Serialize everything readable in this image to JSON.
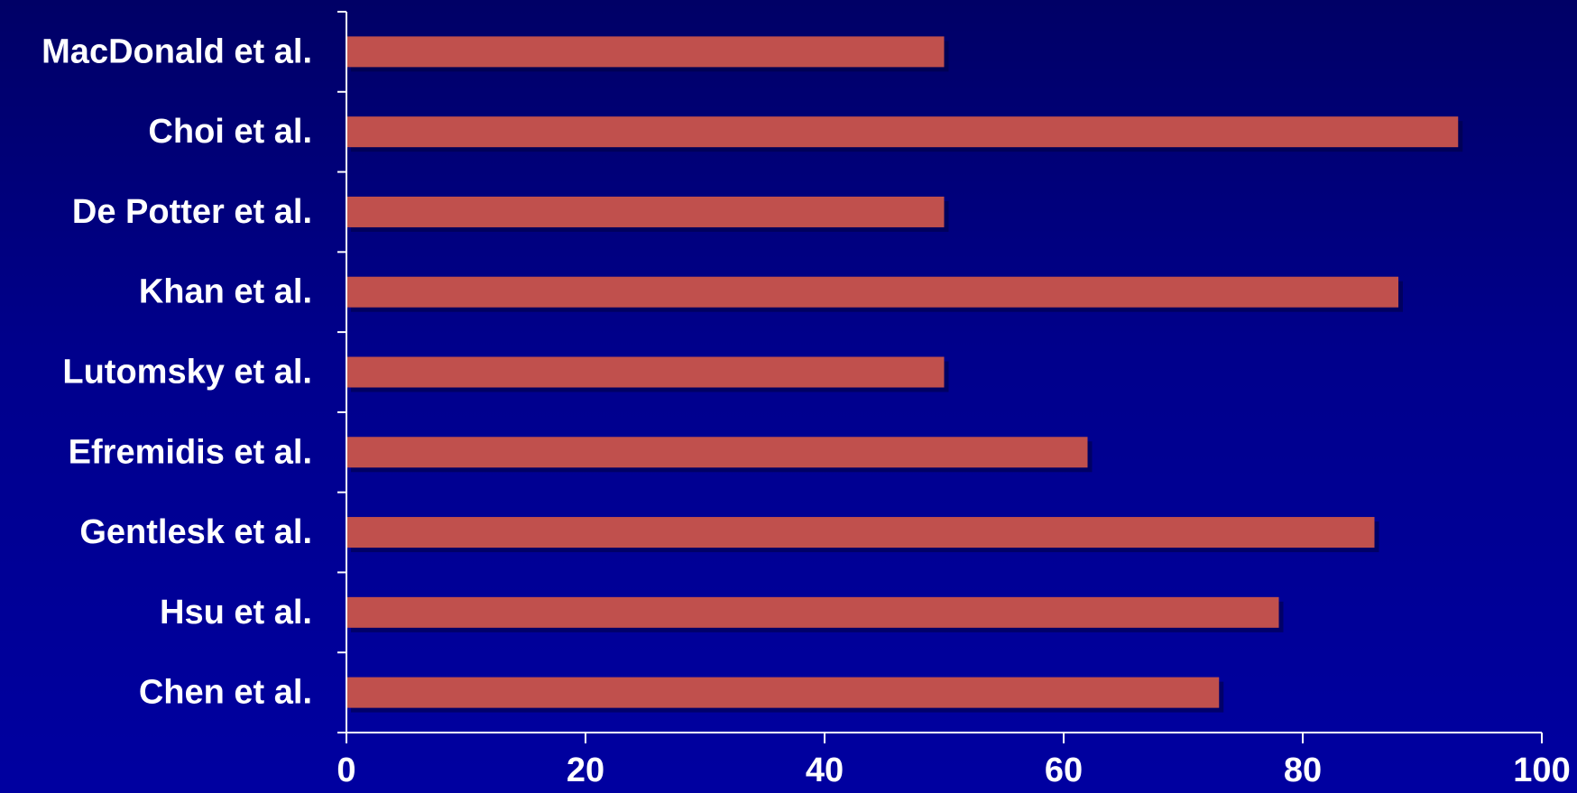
{
  "colors": {
    "background": "#00008a",
    "bar": "#c0504d",
    "bar_shadow": "#000040",
    "text": "#ffffff",
    "axis": "#ffffff"
  },
  "chart_data": {
    "type": "bar",
    "orientation": "horizontal",
    "title": "",
    "xlabel": "",
    "ylabel": "",
    "categories": [
      "MacDonald et al.",
      "Choi et al.",
      "De Potter et al.",
      "Khan et al.",
      "Lutomsky et al.",
      "Efremidis et al.",
      "Gentlesk et al.",
      "Hsu et al.",
      "Chen et al."
    ],
    "values": [
      50,
      93,
      50,
      88,
      50,
      62,
      86,
      78,
      73
    ],
    "xlim": [
      0,
      100
    ],
    "xticks": [
      "0",
      "20",
      "40",
      "60",
      "80",
      "100"
    ],
    "grid": false,
    "legend": "none"
  }
}
